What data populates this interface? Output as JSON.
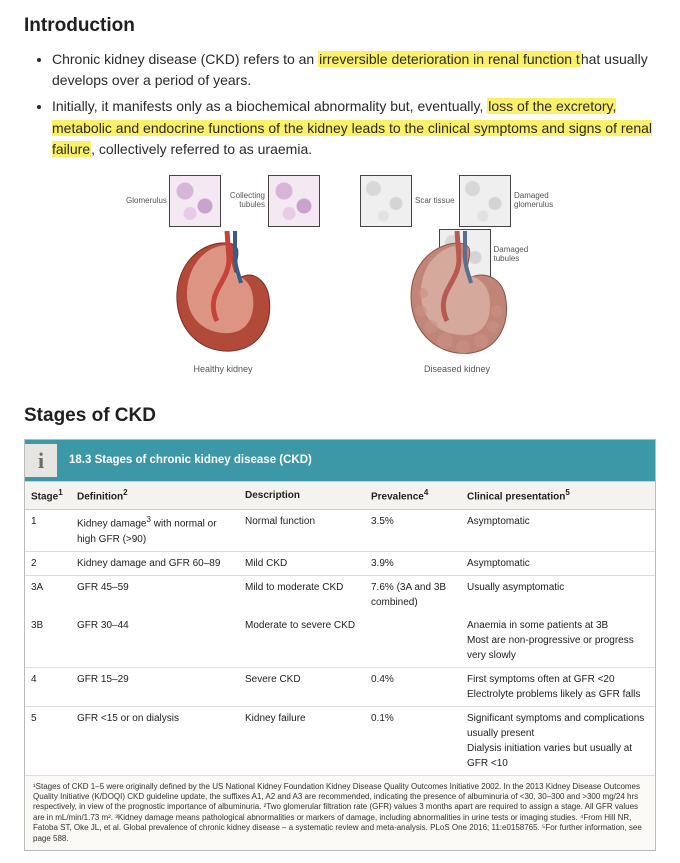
{
  "intro": {
    "heading": "Introduction",
    "bullet1_a": "Chronic kidney disease (CKD) refers to an ",
    "bullet1_hl": "irreversible deterioration in renal function t",
    "bullet1_b": "hat usually develops over a period of years.",
    "bullet2_a": "Initially, it manifests only as a biochemical abnormality but, eventually, ",
    "bullet2_hl": "loss of the excretory, metabolic and endocrine functions of the kidney leads to the clinical symptoms and signs of renal failure",
    "bullet2_b": ", collectively referred to as uraemia."
  },
  "diagram": {
    "healthy": {
      "inset1": "Glomerulus",
      "inset2": "Collecting tubules",
      "caption": "Healthy kidney",
      "body_color": "#b24a3a",
      "cut_color": "#e3a28f",
      "vessel_color": "#c7433a"
    },
    "diseased": {
      "inset1": "Scar tissue",
      "inset2": "Damaged glomerulus",
      "inset3": "Damaged tubules",
      "caption": "Diseased kidney",
      "body_color": "#c18578",
      "cut_color": "#d9b3a6",
      "vessel_color": "#b85a52"
    }
  },
  "stages": {
    "heading": "Stages of CKD",
    "banner_icon": "i",
    "banner_text": "18.3  Stages of chronic kidney disease (CKD)",
    "columns": {
      "stage": "Stage",
      "stage_sup": "1",
      "def": "Definition",
      "def_sup": "2",
      "desc": "Description",
      "prev": "Prevalence",
      "prev_sup": "4",
      "clin": "Clinical presentation",
      "clin_sup": "5"
    },
    "rows": [
      {
        "stage": "1",
        "def_a": "Kidney damage",
        "def_sup": "3",
        "def_b": " with normal or high GFR (>90)",
        "desc": "Normal function",
        "prev": "3.5%",
        "clin": "Asymptomatic",
        "border": true
      },
      {
        "stage": "2",
        "def": "Kidney damage and GFR 60–89",
        "desc": "Mild CKD",
        "prev": "3.9%",
        "clin": "Asymptomatic",
        "border": true
      },
      {
        "stage": "3A",
        "def": "GFR 45–59",
        "desc": "Mild to moderate CKD",
        "prev": "7.6% (3A and 3B combined)",
        "clin": "Usually asymptomatic",
        "border": false
      },
      {
        "stage": "3B",
        "def": "GFR 30–44",
        "desc": "Moderate to severe CKD",
        "prev": "",
        "clin": "Anaemia in some patients at 3B\nMost are non-progressive or progress very slowly",
        "border": true
      },
      {
        "stage": "4",
        "def": "GFR 15–29",
        "desc": "Severe CKD",
        "prev": "0.4%",
        "clin": "First symptoms often at GFR <20\nElectrolyte problems likely as GFR falls",
        "border": true
      },
      {
        "stage": "5",
        "def": "GFR <15 or on dialysis",
        "desc": "Kidney failure",
        "prev": "0.1%",
        "clin": "Significant symptoms and complications usually present\nDialysis initiation varies but usually at GFR <10",
        "border": true
      }
    ],
    "footnote": "¹Stages of CKD 1–5 were originally defined by the US National Kidney Foundation Kidney Disease Quality Outcomes Initiative 2002. In the 2013 Kidney Disease Outcomes Quality Initiative (K/DOQI) CKD guideline update, the suffixes A1, A2 and A3 are recommended, indicating the presence of albuminuria of  <30, 30–300 and >300 mg/24 hrs respectively, in view of the prognostic importance of albuminuria. ²Two glomerular filtration rate (GFR) values 3 months apart are required to assign a stage. All GFR values are in mL/min/1.73 m². ³Kidney damage means pathological abnormalities or markers of damage, including abnormalities in urine tests or imaging studies. ⁴From Hill NR, Fatoba ST, Oke JL, et al. Global prevalence of chronic kidney disease – a systematic review and meta-analysis. PLoS One 2016; 11:e0158765. ⁵For further information, see page 588."
  },
  "colors": {
    "highlight": "#fbf06a",
    "banner": "#3c97a7",
    "banner_text": "#ffffff",
    "th_bg": "#f5f3ef",
    "border": "#dddddd"
  }
}
